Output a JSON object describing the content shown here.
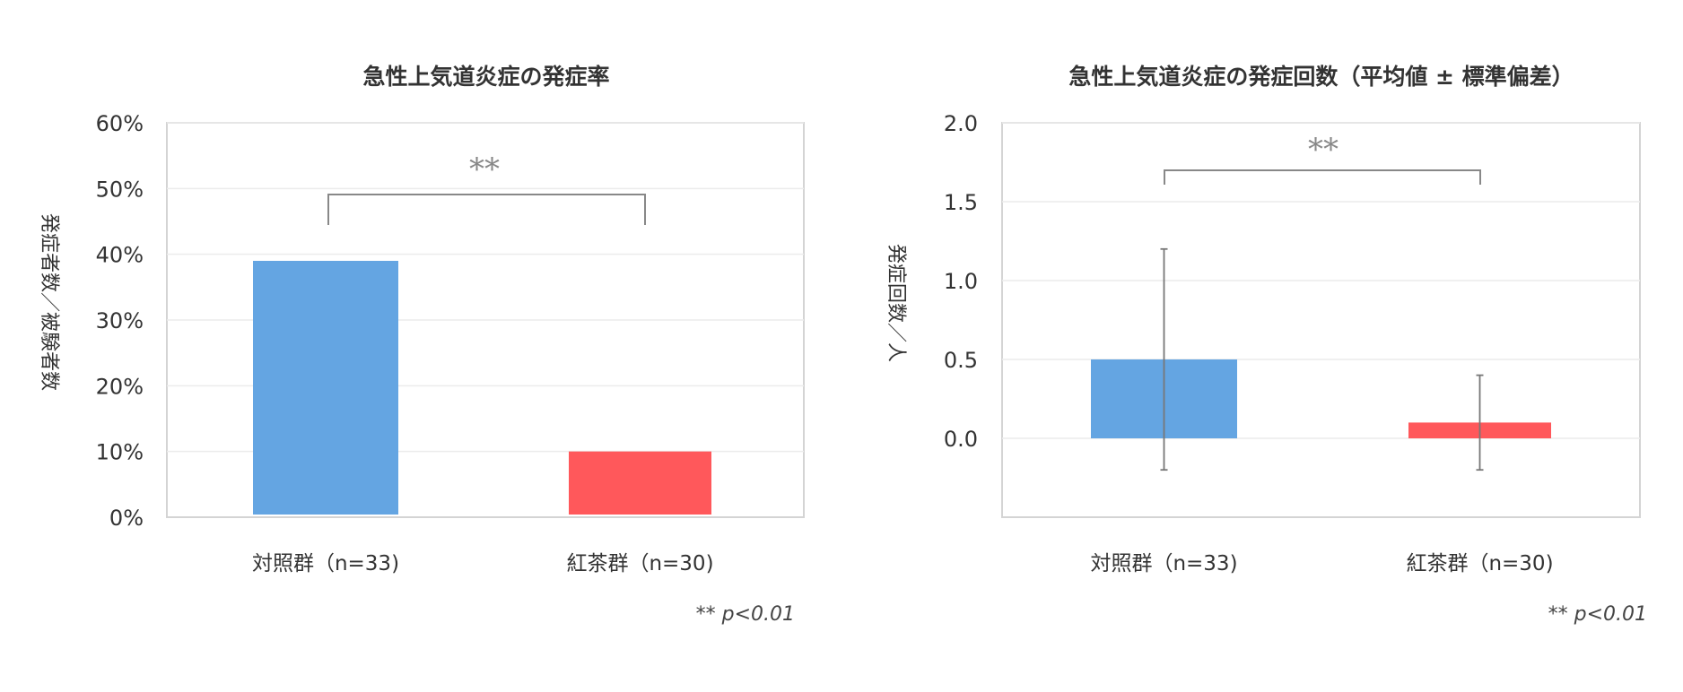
{
  "chart_data": [
    {
      "type": "bar",
      "title": "急性上気道炎症の発症率",
      "ylabel": "発症者数／被験者数",
      "categories": [
        "対照群（n=33)",
        "紅茶群（n=30)"
      ],
      "values": [
        39,
        10
      ],
      "ylim": [
        0,
        60
      ],
      "yticks": [
        "0%",
        "10%",
        "20%",
        "30%",
        "40%",
        "50%",
        "60%"
      ],
      "colors": [
        "#64a5e2",
        "#ff585b"
      ],
      "significance": "**",
      "footnote": "** p<0.01",
      "grid": true
    },
    {
      "type": "bar",
      "title": "急性上気道炎症の発症回数（平均値 ± 標準偏差）",
      "ylabel": "発症回数／人",
      "categories": [
        "対照群（n=33)",
        "紅茶群（n=30)"
      ],
      "values": [
        0.5,
        0.1
      ],
      "error": [
        0.7,
        0.3
      ],
      "ylim": [
        -0.5,
        2.0
      ],
      "yticks": [
        "0.0",
        "0.5",
        "1.0",
        "1.5",
        "2.0"
      ],
      "colors": [
        "#64a5e2",
        "#ff585b"
      ],
      "significance": "**",
      "footnote": "** p<0.01",
      "grid": true
    }
  ]
}
